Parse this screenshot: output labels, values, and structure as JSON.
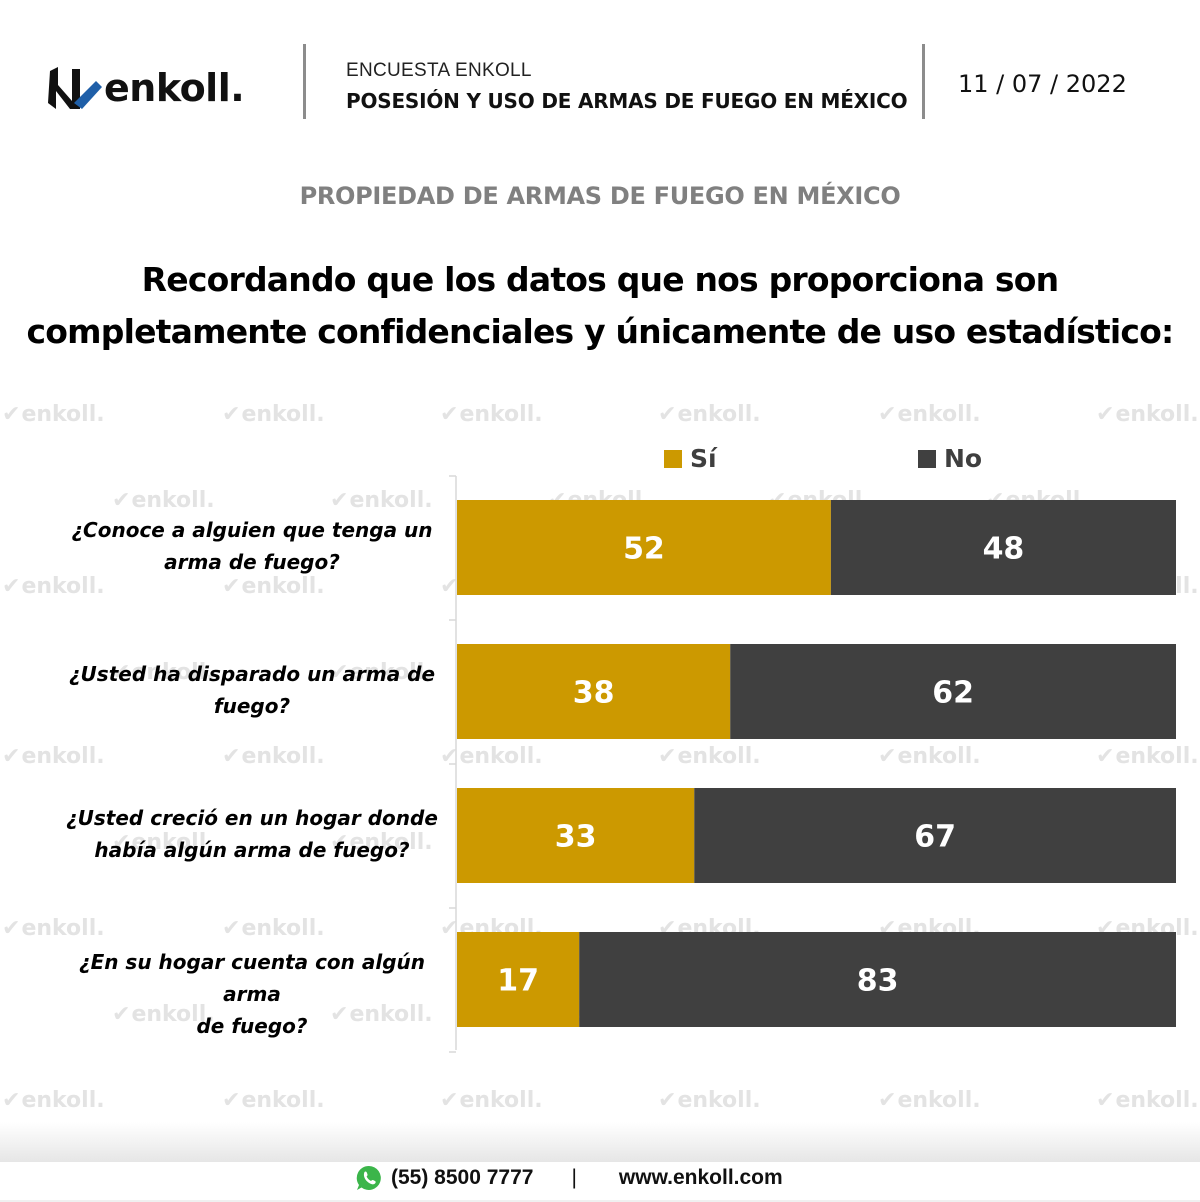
{
  "header": {
    "logo_text": "enkoll.",
    "survey_label": "ENCUESTA ENKOLL",
    "survey_title": "POSESIÓN Y USO DE ARMAS DE FUEGO EN MÉXICO",
    "date": "11 / 07 / 2022"
  },
  "section_title": "PROPIEDAD DE ARMAS DE FUEGO EN MÉXICO",
  "question": {
    "line1": "Recordando que los datos que nos proporciona son",
    "line2": "completamente confidenciales y únicamente de uso estadístico:"
  },
  "watermark_text": "enkoll.",
  "colors": {
    "si": "#CC9900",
    "no": "#404040",
    "logo_accent": "#1f5fa8",
    "section": "#808080"
  },
  "chart_data": {
    "type": "bar",
    "orientation": "horizontal",
    "stacked": true,
    "title": "",
    "xlabel": "",
    "ylabel": "",
    "xlim": [
      0,
      100
    ],
    "grid": false,
    "legend_position": "top",
    "categories": [
      [
        "¿Conoce a alguien que tenga un",
        "arma de fuego?"
      ],
      [
        "¿Usted ha disparado un arma de",
        "fuego?"
      ],
      [
        "¿Usted creció en un hogar donde",
        "había algún arma de fuego?"
      ],
      [
        "¿En su hogar cuenta con algún arma",
        "de fuego?"
      ]
    ],
    "series": [
      {
        "name": "Sí",
        "color": "#CC9900",
        "values": [
          52,
          38,
          33,
          17
        ]
      },
      {
        "name": "No",
        "color": "#404040",
        "values": [
          48,
          62,
          67,
          83
        ]
      }
    ],
    "data_labels": true
  },
  "footer": {
    "phone": "(55) 8500 7777",
    "separator": "|",
    "website": "www.enkoll.com"
  }
}
